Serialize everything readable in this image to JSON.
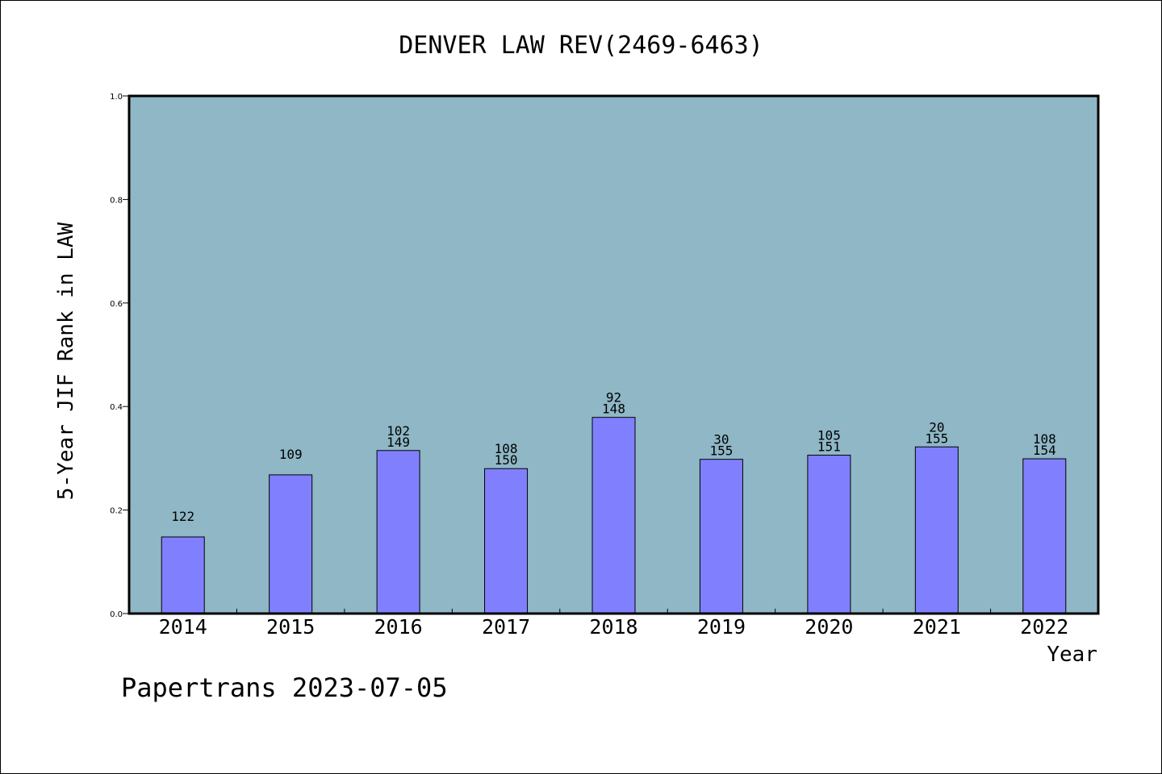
{
  "chart_data": {
    "type": "bar",
    "title": "DENVER LAW REV(2469-6463)",
    "xlabel": "Year",
    "ylabel": "5-Year JIF Rank in LAW",
    "categories": [
      "2014",
      "2015",
      "2016",
      "2017",
      "2018",
      "2019",
      "2020",
      "2021",
      "2022"
    ],
    "values": [
      0.148,
      0.268,
      0.315,
      0.28,
      0.379,
      0.298,
      0.306,
      0.322,
      0.299
    ],
    "labels_top": [
      "",
      "",
      "102",
      "108",
      "92",
      "30",
      "105",
      "20",
      "108"
    ],
    "labels_bottom": [
      "122",
      "109",
      "149",
      "150",
      "148",
      "155",
      "151",
      "155",
      "154"
    ],
    "ylim": [
      0,
      1.0
    ],
    "yticks": [
      "0.0",
      "0.2",
      "0.4",
      "0.6",
      "0.8",
      "1.0"
    ],
    "grid": false,
    "legend": "none",
    "colors": {
      "plot_background": "#8fb7c6",
      "bar_fill": "#8080ff",
      "bar_stroke": "#000000"
    }
  },
  "footer": {
    "watermark": "Papertrans 2023-07-05"
  }
}
